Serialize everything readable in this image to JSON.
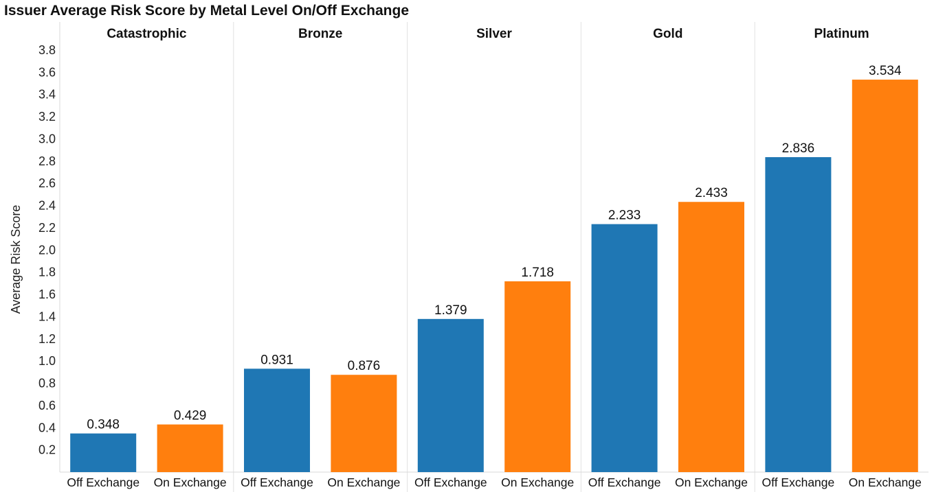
{
  "chart_data": {
    "type": "bar",
    "title": "Issuer Average Risk Score by Metal Level On/Off Exchange",
    "ylabel": "Average Risk Score",
    "xlabel": "",
    "ylim": [
      0,
      3.8
    ],
    "yticks": [
      "0.2",
      "0.4",
      "0.6",
      "0.8",
      "1.0",
      "1.2",
      "1.4",
      "1.6",
      "1.8",
      "2.0",
      "2.2",
      "2.4",
      "2.6",
      "2.8",
      "3.0",
      "3.2",
      "3.4",
      "3.6",
      "3.8"
    ],
    "grid": false,
    "panels": [
      "Catastrophic",
      "Bronze",
      "Silver",
      "Gold",
      "Platinum"
    ],
    "categories": [
      "Off Exchange",
      "On Exchange"
    ],
    "colors": {
      "Off Exchange": "#1f77b4",
      "On Exchange": "#ff7f0e"
    },
    "values": [
      [
        0.348,
        0.429
      ],
      [
        0.931,
        0.876
      ],
      [
        1.379,
        1.718
      ],
      [
        2.233,
        2.433
      ],
      [
        2.836,
        3.534
      ]
    ],
    "data_labels": [
      [
        "0.348",
        "0.429"
      ],
      [
        "0.931",
        "0.876"
      ],
      [
        "1.379",
        "1.718"
      ],
      [
        "2.233",
        "2.433"
      ],
      [
        "2.836",
        "3.534"
      ]
    ]
  }
}
